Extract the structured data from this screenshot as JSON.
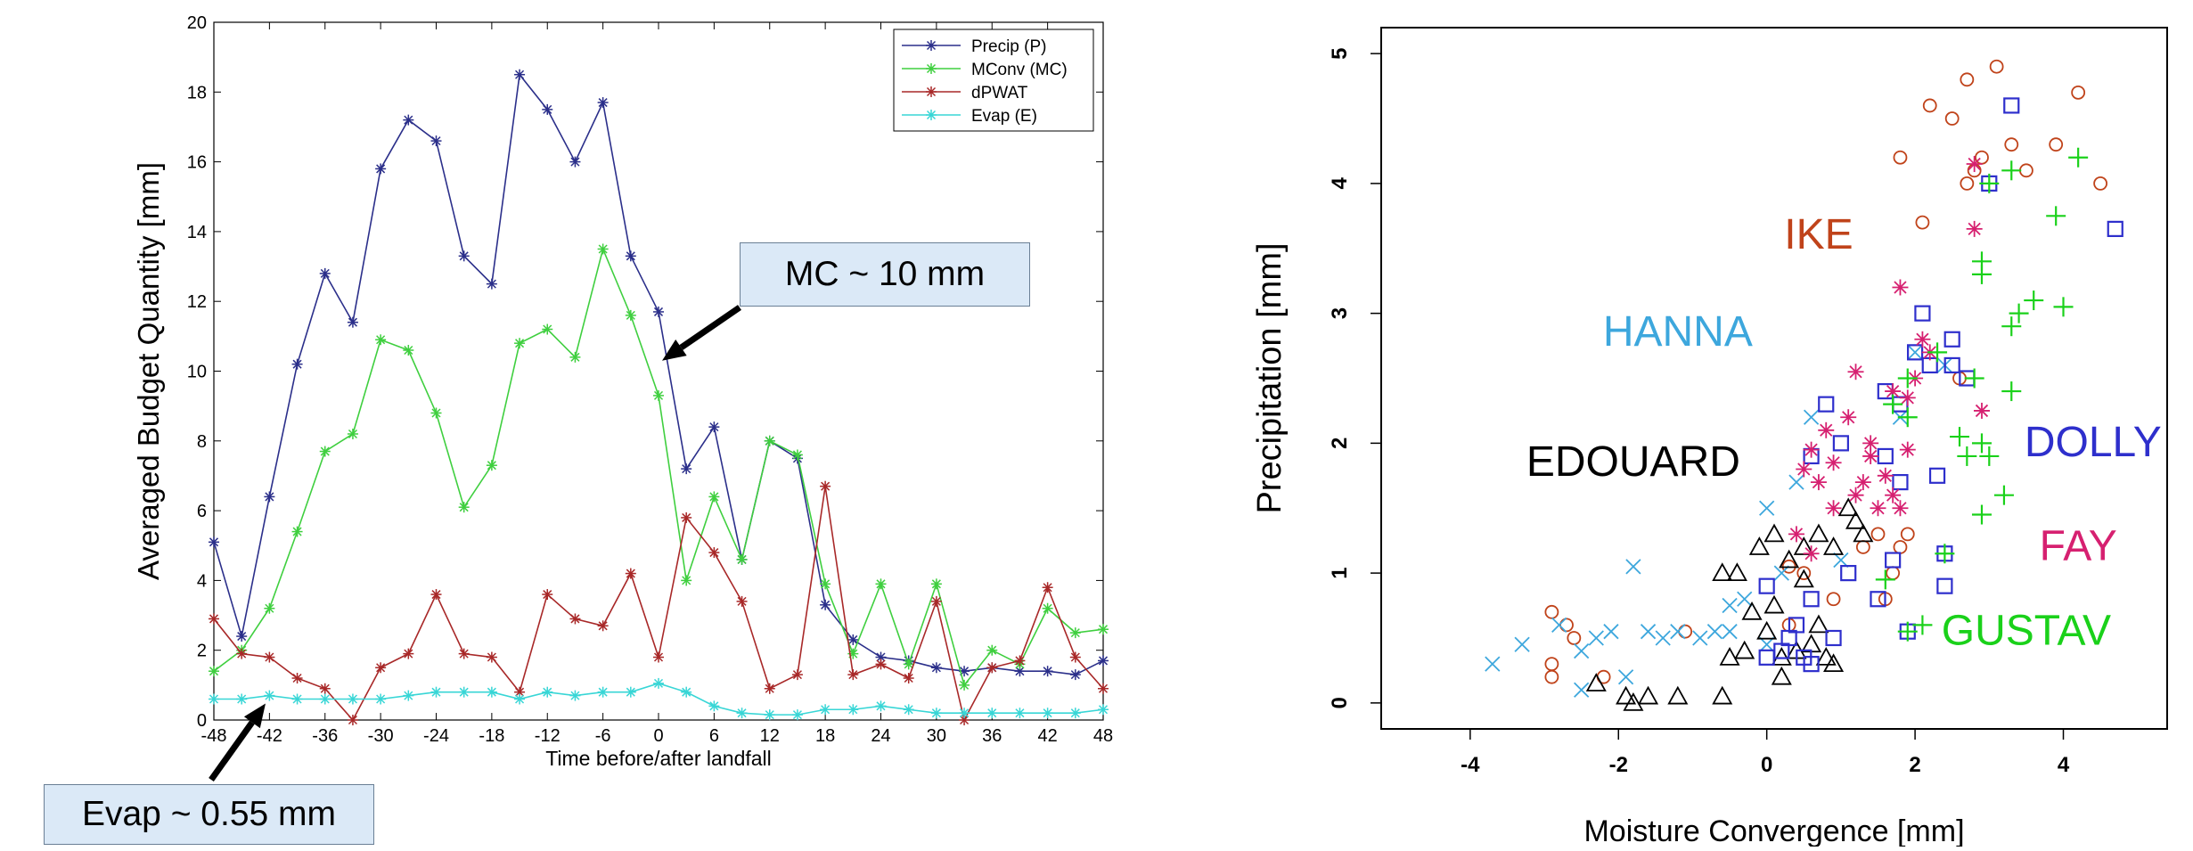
{
  "chart_data": [
    {
      "type": "line",
      "title": "",
      "xlabel": "Time before/after landfall",
      "ylabel": "Averaged Budget Quantity  [mm]",
      "xlim": [
        -48,
        48
      ],
      "ylim": [
        0,
        20
      ],
      "xticks": [
        -48,
        -42,
        -36,
        -30,
        -24,
        -18,
        -12,
        -6,
        0,
        6,
        12,
        18,
        24,
        30,
        36,
        42,
        48
      ],
      "yticks": [
        0,
        2,
        4,
        6,
        8,
        10,
        12,
        14,
        16,
        18,
        20
      ],
      "legend_position": "top-right",
      "x": [
        -48,
        -45,
        -42,
        -39,
        -36,
        -33,
        -30,
        -27,
        -24,
        -21,
        -18,
        -15,
        -12,
        -9,
        -6,
        -3,
        0,
        3,
        6,
        9,
        12,
        15,
        18,
        21,
        24,
        27,
        30,
        33,
        36,
        39,
        42,
        45,
        48
      ],
      "series": [
        {
          "name": "Precip (P)",
          "color": "#2b2f8a",
          "values": [
            5.1,
            2.4,
            6.4,
            10.2,
            12.8,
            11.4,
            15.8,
            17.2,
            16.6,
            13.3,
            12.5,
            18.5,
            17.5,
            16.0,
            17.7,
            13.3,
            11.7,
            7.2,
            8.4,
            4.6,
            8.0,
            7.5,
            3.3,
            2.3,
            1.8,
            1.7,
            1.5,
            1.4,
            1.5,
            1.4,
            1.4,
            1.3,
            1.7
          ]
        },
        {
          "name": "MConv (MC)",
          "color": "#3fcf3f",
          "values": [
            1.4,
            2.0,
            3.2,
            5.4,
            7.7,
            8.2,
            10.9,
            10.6,
            8.8,
            6.1,
            7.3,
            10.8,
            11.2,
            10.4,
            13.5,
            11.6,
            9.3,
            4.0,
            6.4,
            4.6,
            8.0,
            7.6,
            3.9,
            1.9,
            3.9,
            1.6,
            3.9,
            1.0,
            2.0,
            1.6,
            3.2,
            2.5,
            2.6
          ]
        },
        {
          "name": "dPWAT",
          "color": "#a82828",
          "values": [
            2.9,
            1.9,
            1.8,
            1.2,
            0.9,
            0.0,
            1.5,
            1.9,
            3.6,
            1.9,
            1.8,
            0.8,
            3.6,
            2.9,
            2.7,
            4.2,
            1.8,
            5.8,
            4.8,
            3.4,
            0.9,
            1.3,
            6.7,
            1.3,
            1.6,
            1.2,
            3.4,
            0.0,
            1.5,
            1.7,
            3.8,
            1.8,
            0.9
          ]
        },
        {
          "name": "Evap (E)",
          "color": "#38d6d6",
          "values": [
            0.6,
            0.6,
            0.7,
            0.6,
            0.6,
            0.6,
            0.6,
            0.7,
            0.8,
            0.8,
            0.8,
            0.6,
            0.8,
            0.7,
            0.8,
            0.8,
            1.05,
            0.8,
            0.4,
            0.2,
            0.15,
            0.15,
            0.3,
            0.3,
            0.4,
            0.3,
            0.2,
            0.2,
            0.2,
            0.2,
            0.2,
            0.2,
            0.3
          ]
        }
      ],
      "annotations": [
        {
          "text": "MC ~ 10 mm",
          "points_to": [
            0,
            10.3
          ]
        },
        {
          "text": "Evap ~ 0.55 mm",
          "points_to": [
            -43,
            0.6
          ]
        }
      ]
    },
    {
      "type": "scatter",
      "title": "",
      "xlabel": "Moisture Convergence [mm]",
      "ylabel": "Precipitation [mm]",
      "xlim": [
        -5.2,
        5.4
      ],
      "ylim": [
        -0.2,
        5.2
      ],
      "xticks": [
        -4,
        -2,
        0,
        2,
        4
      ],
      "yticks": [
        0,
        1,
        2,
        3,
        4,
        5
      ],
      "series": [
        {
          "name": "IKE",
          "color": "#c0431a",
          "marker": "circle",
          "label_pos": [
            0.7,
            3.5
          ],
          "points": [
            [
              1.8,
              4.2
            ],
            [
              2.2,
              4.6
            ],
            [
              2.5,
              4.5
            ],
            [
              2.7,
              4.8
            ],
            [
              3.1,
              4.9
            ],
            [
              2.9,
              4.2
            ],
            [
              2.8,
              4.1
            ],
            [
              3.3,
              4.3
            ],
            [
              3.5,
              4.1
            ],
            [
              3.9,
              4.3
            ],
            [
              4.2,
              4.7
            ],
            [
              4.5,
              4.0
            ],
            [
              2.1,
              3.7
            ],
            [
              2.7,
              4.0
            ],
            [
              -2.9,
              0.7
            ],
            [
              -2.7,
              0.6
            ],
            [
              -2.6,
              0.5
            ],
            [
              -2.9,
              0.3
            ],
            [
              -2.9,
              0.2
            ],
            [
              -2.2,
              0.2
            ],
            [
              -1.1,
              0.55
            ],
            [
              0.9,
              0.8
            ],
            [
              1.3,
              1.2
            ],
            [
              1.5,
              1.3
            ],
            [
              1.7,
              1.0
            ],
            [
              1.6,
              0.8
            ],
            [
              1.8,
              1.2
            ],
            [
              1.9,
              1.3
            ],
            [
              0.3,
              0.6
            ],
            [
              0.5,
              1.0
            ],
            [
              2.6,
              2.5
            ],
            [
              0.3,
              1.05
            ]
          ]
        },
        {
          "name": "HANNA",
          "color": "#3da7dd",
          "marker": "x",
          "label_pos": [
            -1.2,
            2.75
          ],
          "points": [
            [
              -3.7,
              0.3
            ],
            [
              -3.3,
              0.45
            ],
            [
              -2.8,
              0.6
            ],
            [
              -2.5,
              0.4
            ],
            [
              -2.3,
              0.5
            ],
            [
              -2.1,
              0.55
            ],
            [
              -1.8,
              1.05
            ],
            [
              -1.6,
              0.55
            ],
            [
              -1.4,
              0.5
            ],
            [
              -1.2,
              0.55
            ],
            [
              -0.9,
              0.5
            ],
            [
              -0.7,
              0.55
            ],
            [
              -0.5,
              0.75
            ],
            [
              -0.3,
              0.8
            ],
            [
              -0.5,
              0.55
            ],
            [
              0.0,
              0.45
            ],
            [
              0.0,
              1.5
            ],
            [
              0.2,
              1.0
            ],
            [
              0.4,
              1.7
            ],
            [
              0.6,
              2.2
            ],
            [
              1.0,
              1.1
            ],
            [
              1.8,
              2.2
            ],
            [
              2.0,
              2.7
            ],
            [
              2.4,
              2.6
            ],
            [
              -1.9,
              0.2
            ],
            [
              -2.5,
              0.1
            ]
          ]
        },
        {
          "name": "EDOUARD",
          "color": "#000000",
          "marker": "triangle",
          "label_pos": [
            -1.8,
            1.75
          ],
          "points": [
            [
              -2.3,
              0.15
            ],
            [
              -1.9,
              0.05
            ],
            [
              -1.8,
              0.0
            ],
            [
              -1.6,
              0.05
            ],
            [
              -1.2,
              0.05
            ],
            [
              -0.6,
              0.05
            ],
            [
              -0.6,
              1.0
            ],
            [
              -0.4,
              1.0
            ],
            [
              -0.1,
              1.2
            ],
            [
              0.1,
              1.3
            ],
            [
              0.3,
              1.1
            ],
            [
              0.5,
              1.2
            ],
            [
              0.7,
              1.3
            ],
            [
              0.9,
              1.2
            ],
            [
              1.1,
              1.5
            ],
            [
              1.2,
              1.4
            ],
            [
              -0.2,
              0.7
            ],
            [
              0.0,
              0.55
            ],
            [
              0.1,
              0.75
            ],
            [
              0.2,
              0.35
            ],
            [
              0.4,
              0.4
            ],
            [
              0.6,
              0.45
            ],
            [
              0.8,
              0.35
            ],
            [
              -0.5,
              0.35
            ],
            [
              -0.3,
              0.4
            ],
            [
              0.2,
              0.2
            ],
            [
              0.5,
              0.95
            ],
            [
              0.7,
              0.6
            ],
            [
              1.3,
              1.3
            ],
            [
              0.9,
              0.3
            ]
          ]
        },
        {
          "name": "DOLLY",
          "color": "#2e2fcc",
          "marker": "square",
          "label_pos": [
            4.4,
            1.9
          ],
          "points": [
            [
              3.3,
              4.6
            ],
            [
              3.0,
              4.0
            ],
            [
              4.7,
              3.65
            ],
            [
              2.1,
              3.0
            ],
            [
              2.0,
              2.7
            ],
            [
              2.2,
              2.6
            ],
            [
              2.5,
              2.6
            ],
            [
              2.5,
              2.8
            ],
            [
              2.7,
              2.5
            ],
            [
              1.6,
              2.4
            ],
            [
              1.8,
              2.3
            ],
            [
              0.8,
              2.3
            ],
            [
              0.6,
              1.9
            ],
            [
              1.0,
              2.0
            ],
            [
              1.6,
              1.9
            ],
            [
              1.8,
              1.7
            ],
            [
              2.3,
              1.75
            ],
            [
              0.0,
              0.9
            ],
            [
              0.3,
              0.5
            ],
            [
              0.5,
              0.35
            ],
            [
              0.6,
              0.8
            ],
            [
              0.4,
              0.6
            ],
            [
              0.9,
              0.5
            ],
            [
              1.1,
              1.0
            ],
            [
              1.5,
              0.8
            ],
            [
              1.7,
              1.1
            ],
            [
              1.9,
              0.55
            ],
            [
              2.4,
              0.9
            ],
            [
              2.4,
              1.15
            ],
            [
              0.0,
              0.35
            ],
            [
              0.2,
              0.4
            ],
            [
              0.6,
              0.3
            ]
          ]
        },
        {
          "name": "FAY",
          "color": "#d62070",
          "marker": "asterisk",
          "label_pos": [
            4.2,
            1.1
          ],
          "points": [
            [
              2.8,
              4.15
            ],
            [
              2.8,
              3.65
            ],
            [
              1.8,
              3.2
            ],
            [
              2.1,
              2.8
            ],
            [
              2.2,
              2.7
            ],
            [
              2.0,
              2.5
            ],
            [
              1.9,
              2.35
            ],
            [
              1.7,
              2.4
            ],
            [
              1.2,
              2.55
            ],
            [
              1.1,
              2.2
            ],
            [
              1.4,
              2.0
            ],
            [
              0.8,
              2.1
            ],
            [
              0.6,
              1.95
            ],
            [
              0.9,
              1.85
            ],
            [
              0.7,
              1.7
            ],
            [
              0.5,
              1.8
            ],
            [
              0.9,
              1.5
            ],
            [
              1.2,
              1.6
            ],
            [
              1.5,
              1.5
            ],
            [
              1.7,
              1.6
            ],
            [
              1.8,
              1.5
            ],
            [
              1.9,
              1.95
            ],
            [
              1.6,
              1.75
            ],
            [
              0.4,
              1.3
            ],
            [
              0.6,
              1.15
            ],
            [
              2.9,
              2.25
            ],
            [
              1.4,
              1.9
            ],
            [
              1.3,
              1.7
            ]
          ]
        },
        {
          "name": "GUSTAV",
          "color": "#1ad11a",
          "marker": "plus",
          "label_pos": [
            3.5,
            0.45
          ],
          "points": [
            [
              4.2,
              4.2
            ],
            [
              3.3,
              4.1
            ],
            [
              3.0,
              4.0
            ],
            [
              3.9,
              3.75
            ],
            [
              2.9,
              3.4
            ],
            [
              2.9,
              3.3
            ],
            [
              3.6,
              3.1
            ],
            [
              4.0,
              3.05
            ],
            [
              3.3,
              2.9
            ],
            [
              3.4,
              3.0
            ],
            [
              1.9,
              2.2
            ],
            [
              1.7,
              2.3
            ],
            [
              1.9,
              2.5
            ],
            [
              2.3,
              2.7
            ],
            [
              2.8,
              2.5
            ],
            [
              3.3,
              2.4
            ],
            [
              2.6,
              2.05
            ],
            [
              2.9,
              2.0
            ],
            [
              3.0,
              1.9
            ],
            [
              2.7,
              1.9
            ],
            [
              3.2,
              1.6
            ],
            [
              2.9,
              1.45
            ],
            [
              2.4,
              1.15
            ],
            [
              1.6,
              0.95
            ],
            [
              1.9,
              0.55
            ],
            [
              2.1,
              0.6
            ]
          ]
        }
      ]
    }
  ]
}
